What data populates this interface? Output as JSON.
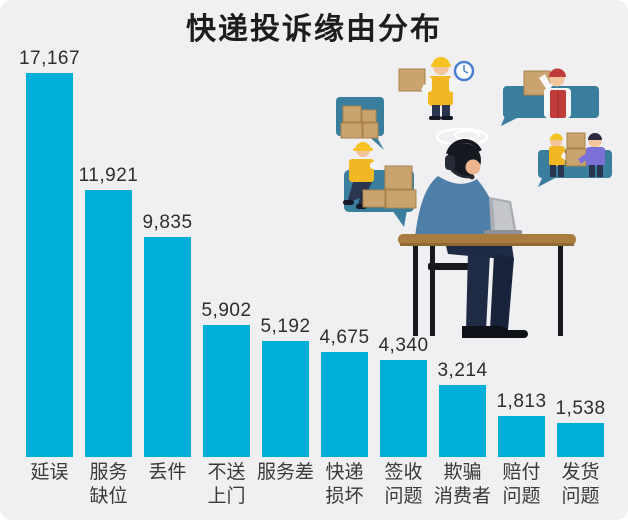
{
  "title": "快递投诉缘由分布",
  "chart_data": {
    "type": "bar",
    "title": "快递投诉缘由分布",
    "categories": [
      "延误",
      "服务\n缺位",
      "丢件",
      "不送\n上门",
      "服务差",
      "快递\n损坏",
      "签收\n问题",
      "欺骗\n消费者",
      "赔付\n问题",
      "发货\n问题"
    ],
    "values": [
      17167,
      11921,
      9835,
      5902,
      5192,
      4675,
      4340,
      3214,
      1813,
      1538
    ],
    "value_labels": [
      "17,167",
      "11,921",
      "9,835",
      "5,902",
      "5,192",
      "4,675",
      "4,340",
      "3,214",
      "1,813",
      "1,538"
    ],
    "xlabel": "",
    "ylabel": "",
    "ylim": [
      0,
      17167
    ],
    "grid": false,
    "legend": false,
    "orientation": "vertical",
    "bar_color": "#00AFD8"
  },
  "colors": {
    "background": "#F0EFF1",
    "bar": "#00AFD8",
    "title_text": "#1D1D1D",
    "value_text": "#2E2E2E",
    "label_text": "#3A3A3A",
    "speech_bubble": "#3A7E9D",
    "cardboard_box": "#C9A46E",
    "vest_yellow": "#F2B824",
    "vest_red": "#C23B3B",
    "sweater_blue": "#4E7FA8",
    "shirt_purple": "#7A70D8",
    "desk_brown": "#A87D3F"
  },
  "illustration": {
    "alt": "客服人员坐在桌前接听快递投诉，周围是装箱快递员的对话气泡"
  }
}
